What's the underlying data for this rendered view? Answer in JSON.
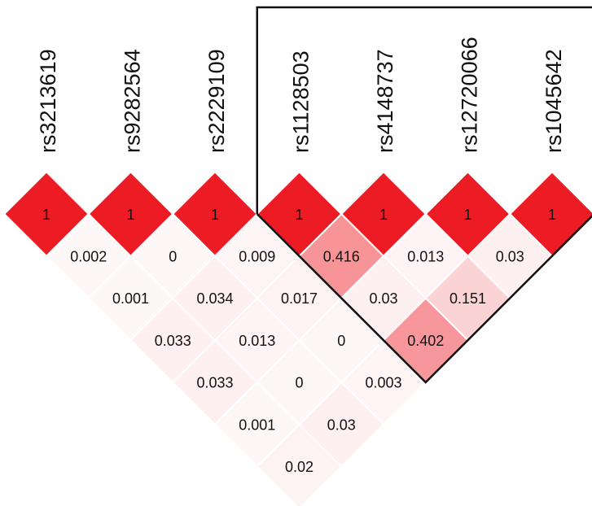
{
  "colors": {
    "diagonal": "#ed1c24",
    "cell_base": "#ed1c24",
    "block_outline": "#111111",
    "text": "#111111",
    "background": "#ffffff"
  },
  "chart_data": {
    "type": "heatmap",
    "snps": [
      "rs3213619",
      "rs9282564",
      "rs2229109",
      "rs1128503",
      "rs4148737",
      "rs12720066",
      "rs1045642"
    ],
    "diagonal_value": "1",
    "cells": [
      {
        "i": 0,
        "j": 1,
        "label": "0.002",
        "value": 0.002
      },
      {
        "i": 1,
        "j": 2,
        "label": "0",
        "value": 0
      },
      {
        "i": 2,
        "j": 3,
        "label": "0.009",
        "value": 0.009
      },
      {
        "i": 3,
        "j": 4,
        "label": "0.416",
        "value": 0.416
      },
      {
        "i": 4,
        "j": 5,
        "label": "0.013",
        "value": 0.013
      },
      {
        "i": 5,
        "j": 6,
        "label": "0.03",
        "value": 0.03
      },
      {
        "i": 0,
        "j": 2,
        "label": "0.001",
        "value": 0.001
      },
      {
        "i": 1,
        "j": 3,
        "label": "0.034",
        "value": 0.034
      },
      {
        "i": 2,
        "j": 4,
        "label": "0.017",
        "value": 0.017
      },
      {
        "i": 3,
        "j": 5,
        "label": "0.03",
        "value": 0.03
      },
      {
        "i": 4,
        "j": 6,
        "label": "0.151",
        "value": 0.151
      },
      {
        "i": 0,
        "j": 3,
        "label": "0.033",
        "value": 0.033
      },
      {
        "i": 1,
        "j": 4,
        "label": "0.013",
        "value": 0.013
      },
      {
        "i": 2,
        "j": 5,
        "label": "0",
        "value": 0
      },
      {
        "i": 3,
        "j": 6,
        "label": "0.402",
        "value": 0.402
      },
      {
        "i": 0,
        "j": 4,
        "label": "0.033",
        "value": 0.033
      },
      {
        "i": 1,
        "j": 5,
        "label": "0",
        "value": 0
      },
      {
        "i": 2,
        "j": 6,
        "label": "0.003",
        "value": 0.003
      },
      {
        "i": 0,
        "j": 5,
        "label": "0.001",
        "value": 0.001
      },
      {
        "i": 1,
        "j": 6,
        "label": "0.03",
        "value": 0.03
      },
      {
        "i": 0,
        "j": 6,
        "label": "0.02",
        "value": 0.02
      }
    ],
    "block": {
      "start": 3,
      "end": 6
    }
  }
}
